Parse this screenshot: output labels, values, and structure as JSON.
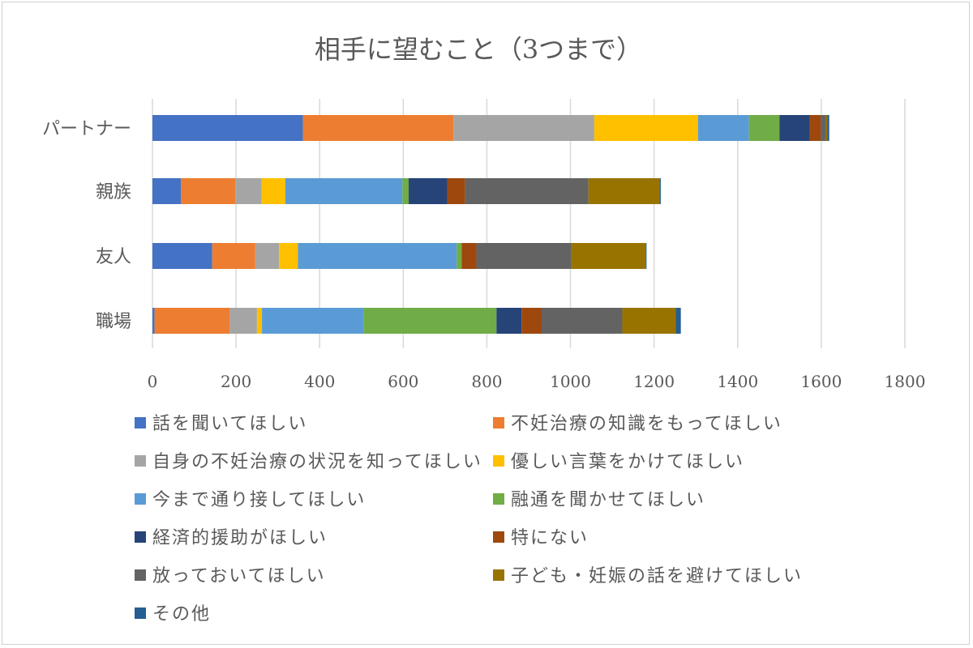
{
  "chart_data": {
    "type": "bar",
    "orientation": "horizontal",
    "stacked": true,
    "title": "相手に望むこと（3つまで）",
    "xlabel": "",
    "ylabel": "",
    "xlim": [
      0,
      1800
    ],
    "xticks": [
      0,
      200,
      400,
      600,
      800,
      1000,
      1200,
      1400,
      1600,
      1800
    ],
    "grid": "vertical major gridlines",
    "legend_position": "bottom",
    "categories": [
      "パートナー",
      "親族",
      "友人",
      "職場"
    ],
    "series": [
      {
        "name": "話を聞いてほしい",
        "color": "#4472C4",
        "values": [
          360,
          68,
          143,
          5
        ]
      },
      {
        "name": "不妊治療の知識をもってほしい",
        "color": "#ED7D31",
        "values": [
          360,
          130,
          103,
          180
        ]
      },
      {
        "name": "自身の不妊治療の状況を知ってほしい",
        "color": "#A5A5A5",
        "values": [
          337,
          63,
          57,
          65
        ]
      },
      {
        "name": "優しい言葉をかけてほしい",
        "color": "#FFC000",
        "values": [
          248,
          57,
          45,
          12
        ]
      },
      {
        "name": "今まで通り接してほしい",
        "color": "#5B9BD5",
        "values": [
          122,
          280,
          380,
          243
        ]
      },
      {
        "name": "融通を聞かせてほしい",
        "color": "#70AD47",
        "values": [
          73,
          15,
          12,
          318
        ]
      },
      {
        "name": "経済的援助がほしい",
        "color": "#264478",
        "values": [
          72,
          92,
          0,
          60
        ]
      },
      {
        "name": "特にない",
        "color": "#9E480E",
        "values": [
          27,
          43,
          35,
          48
        ]
      },
      {
        "name": "放っておいてほしい",
        "color": "#636363",
        "values": [
          12,
          295,
          227,
          193
        ]
      },
      {
        "name": "子ども・妊娠の話を避けてほしい",
        "color": "#997300",
        "values": [
          3,
          170,
          178,
          128
        ]
      },
      {
        "name": "その他",
        "color": "#255E91",
        "values": [
          5,
          3,
          2,
          12
        ]
      }
    ]
  }
}
